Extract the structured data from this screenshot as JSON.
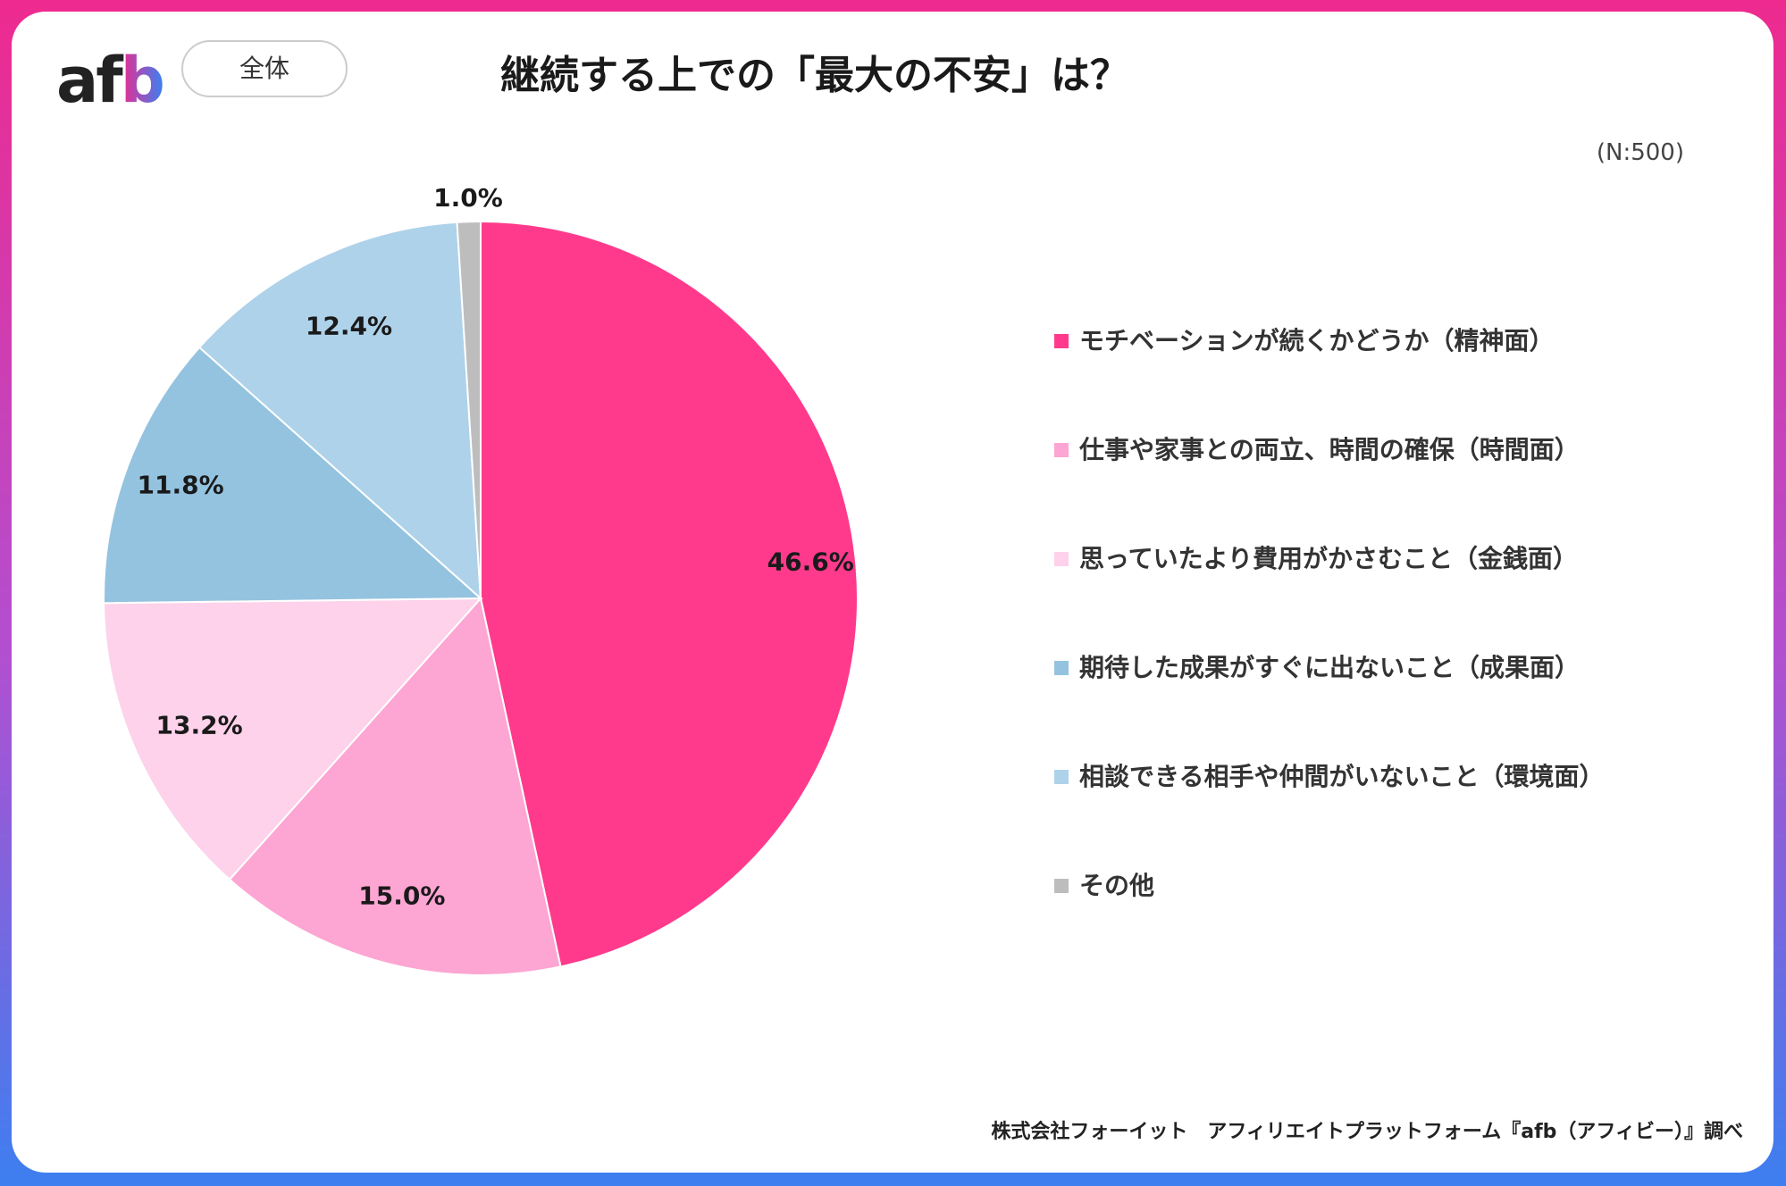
{
  "header": {
    "logo_text_af": "af",
    "logo_text_b": "b",
    "segment_label": "全体",
    "title": "継続する上での「最大の不安」は？",
    "sample_size": "(N:500)"
  },
  "chart_data": {
    "type": "pie",
    "title": "継続する上での「最大の不安」は？",
    "categories": [
      "モチベーションが続くかどうか（精神面）",
      "仕事や家事との両立、時間の確保（時間面）",
      "思っていたより費用がかさむこと（金銭面）",
      "期待した成果がすぐに出ないこと（成果面）",
      "相談できる相手や仲間がいないこと（環境面）",
      "その他"
    ],
    "values": [
      46.6,
      15.0,
      13.2,
      11.8,
      12.4,
      1.0
    ],
    "labels": [
      "46.6%",
      "15.0%",
      "13.2%",
      "11.8%",
      "12.4%",
      "1.0%"
    ],
    "colors": [
      "#ff3a8c",
      "#fda5d3",
      "#fdd2ea",
      "#94c3e0",
      "#aed2ea",
      "#bdbdbd"
    ],
    "unit": "%",
    "legend_placement": "right",
    "start_angle": "12 o'clock, clockwise"
  },
  "footer": {
    "credit": "株式会社フォーイット　アフィリエイトプラットフォーム『afb（アフィビー）』調べ"
  }
}
